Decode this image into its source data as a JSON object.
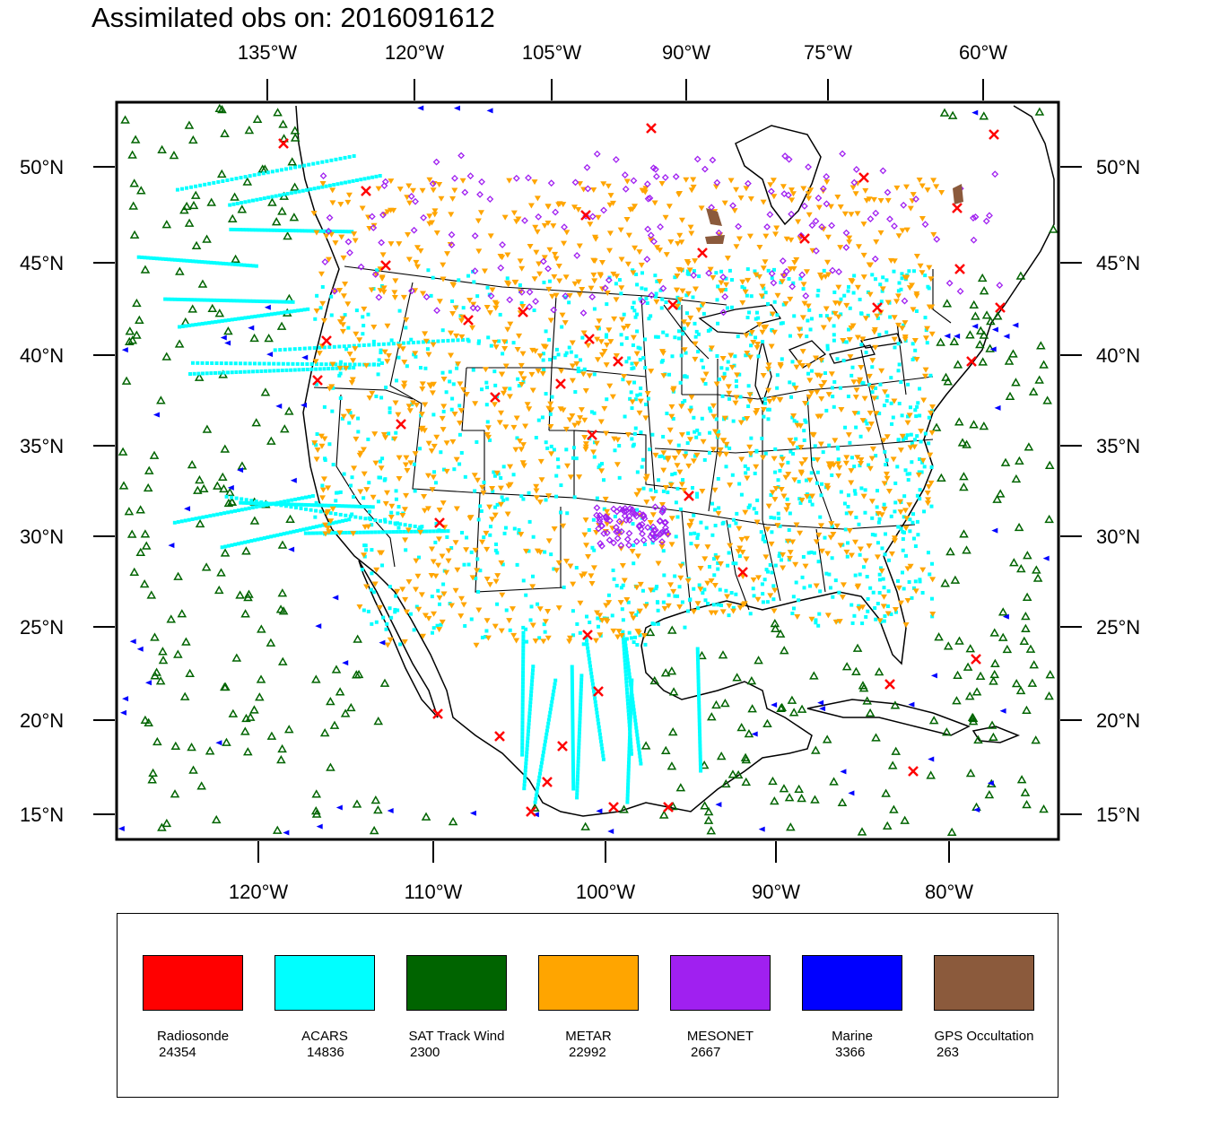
{
  "title": "Assimilated obs on: 2016091612",
  "top_lon_labels": [
    "135°W",
    "120°W",
    "105°W",
    "90°W",
    "75°W",
    "60°W"
  ],
  "bottom_lon_labels": [
    "120°W",
    "110°W",
    "100°W",
    "90°W",
    "80°W"
  ],
  "lat_labels": [
    "50°N",
    "45°N",
    "40°N",
    "35°N",
    "30°N",
    "25°N",
    "20°N",
    "15°N"
  ],
  "legend": [
    {
      "name": "Radiosonde",
      "count": "24354",
      "color": "#ff0000"
    },
    {
      "name": "ACARS",
      "count": "14836",
      "color": "#00ffff"
    },
    {
      "name": "SAT Track Wind",
      "count": "2300",
      "color": "#006400"
    },
    {
      "name": "METAR",
      "count": "22992",
      "color": "#ffa500"
    },
    {
      "name": "MESONET",
      "count": "2667",
      "color": "#a020f0"
    },
    {
      "name": "Marine",
      "count": "3366",
      "color": "#0000ff"
    },
    {
      "name": "GPS Occultation",
      "count": "263",
      "color": "#8b5a3c"
    }
  ],
  "colors": {
    "radiosonde": "#ff0000",
    "acars": "#00ffff",
    "sat_track_wind": "#006400",
    "metar": "#ffa500",
    "mesonet": "#a020f0",
    "marine": "#0000ff",
    "gps": "#8b5a3c"
  }
}
